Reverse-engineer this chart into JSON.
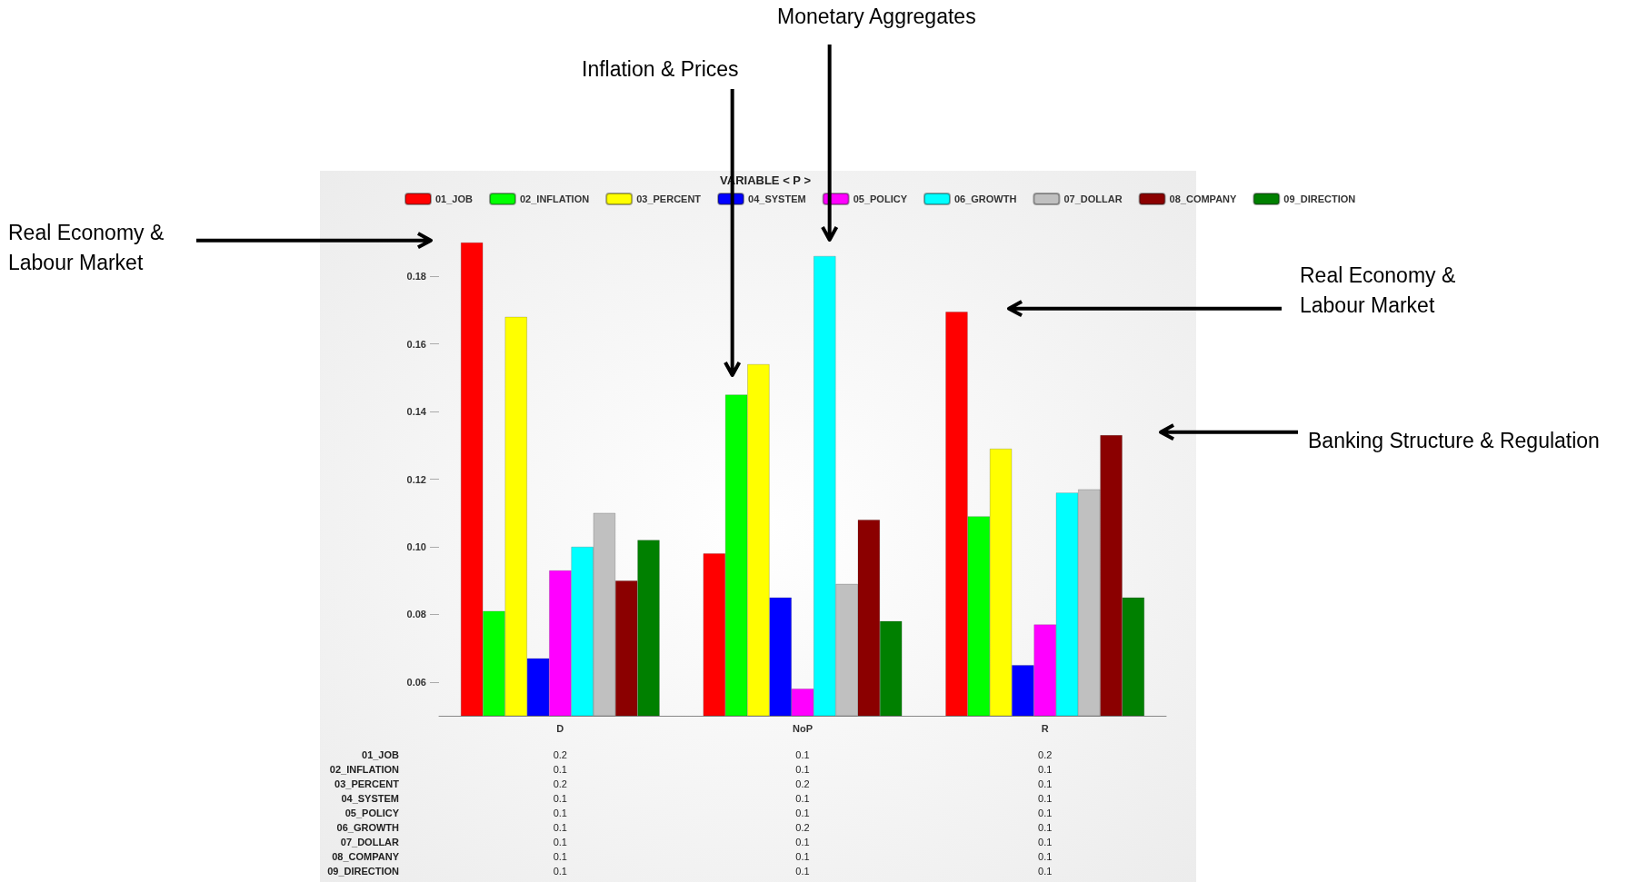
{
  "chart_data": {
    "type": "bar",
    "title": "VARIABLE < P >",
    "categories": [
      "D",
      "NoP",
      "R"
    ],
    "series": [
      {
        "name": "01_JOB",
        "color": "#ff0000",
        "values": [
          0.19,
          0.098,
          0.1695
        ],
        "value_labels": [
          "0.2",
          "0.1",
          "0.2"
        ]
      },
      {
        "name": "02_INFLATION",
        "color": "#00ff00",
        "values": [
          0.081,
          0.145,
          0.109
        ],
        "value_labels": [
          "0.1",
          "0.1",
          "0.1"
        ]
      },
      {
        "name": "03_PERCENT",
        "color": "#ffff00",
        "values": [
          0.168,
          0.154,
          0.129
        ],
        "value_labels": [
          "0.2",
          "0.2",
          "0.1"
        ]
      },
      {
        "name": "04_SYSTEM",
        "color": "#0000ff",
        "values": [
          0.067,
          0.085,
          0.065
        ],
        "value_labels": [
          "0.1",
          "0.1",
          "0.1"
        ]
      },
      {
        "name": "05_POLICY",
        "color": "#ff00ff",
        "values": [
          0.093,
          0.058,
          0.077
        ],
        "value_labels": [
          "0.1",
          "0.1",
          "0.1"
        ]
      },
      {
        "name": "06_GROWTH",
        "color": "#00ffff",
        "values": [
          0.1,
          0.186,
          0.116
        ],
        "value_labels": [
          "0.1",
          "0.2",
          "0.1"
        ]
      },
      {
        "name": "07_DOLLAR",
        "color": "#c0c0c0",
        "values": [
          0.11,
          0.089,
          0.117
        ],
        "value_labels": [
          "0.1",
          "0.1",
          "0.1"
        ]
      },
      {
        "name": "08_COMPANY",
        "color": "#8b0000",
        "values": [
          0.09,
          0.108,
          0.133
        ],
        "value_labels": [
          "0.1",
          "0.1",
          "0.1"
        ]
      },
      {
        "name": "09_DIRECTION",
        "color": "#008000",
        "values": [
          0.102,
          0.078,
          0.085
        ],
        "value_labels": [
          "0.1",
          "0.1",
          "0.1"
        ]
      }
    ],
    "ylim": [
      0.05,
      0.19
    ],
    "yticks": [
      0.06,
      0.08,
      {
        "value": 0.1,
        "label": "0.10"
      },
      0.12,
      0.14,
      0.16,
      0.18
    ],
    "grid": false,
    "legend": "top",
    "annotations": [
      "Real Economy & Labour Market",
      "Inflation & Prices",
      "Monetary Aggregates",
      "Real Economy & Labour Market",
      "Banking Structure & Regulation"
    ]
  }
}
